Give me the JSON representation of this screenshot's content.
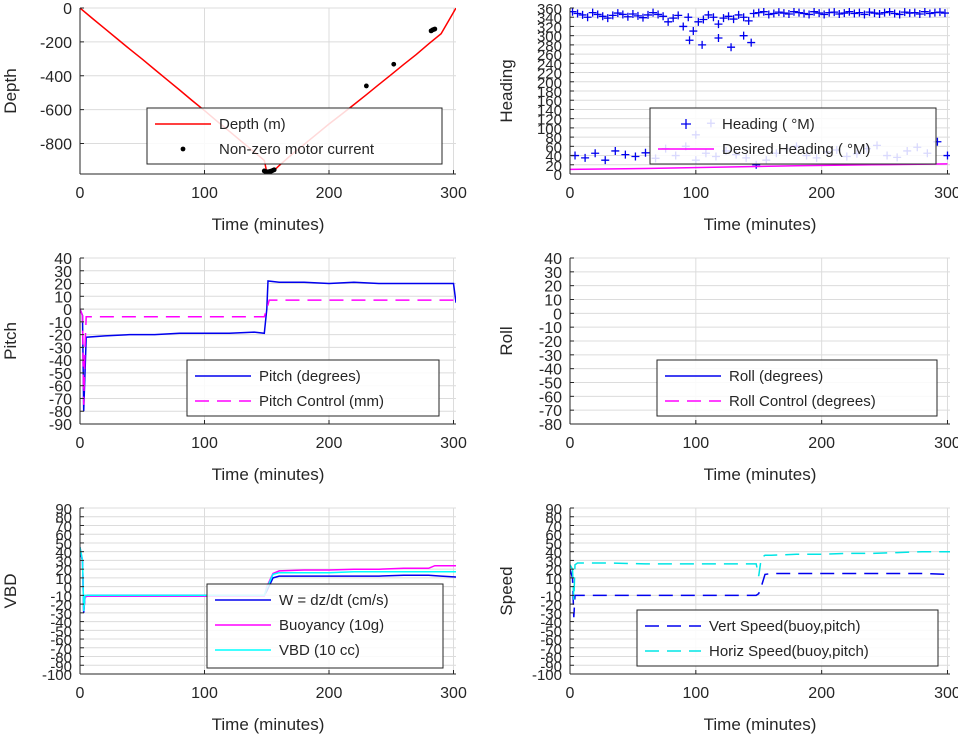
{
  "chart_data": [
    {
      "type": "line",
      "xlabel": "Time (minutes)",
      "ylabel": "Depth",
      "xlim": [
        0,
        302
      ],
      "ylim": [
        -980,
        0
      ],
      "xticks": [
        0,
        100,
        200,
        300
      ],
      "yticks": [
        0,
        -200,
        -400,
        -600,
        -800
      ],
      "grid": true,
      "legend": "lower-center",
      "series": [
        {
          "name": "Depth (m)",
          "style": "line",
          "color": "#ff0000",
          "x": [
            0,
            10,
            20,
            30,
            40,
            50,
            60,
            70,
            80,
            90,
            100,
            110,
            120,
            130,
            140,
            148,
            150,
            155,
            160,
            170,
            180,
            190,
            200,
            210,
            220,
            230,
            240,
            250,
            260,
            270,
            280,
            290,
            302
          ],
          "y": [
            0,
            -62,
            -122,
            -183,
            -243,
            -302,
            -363,
            -424,
            -484,
            -546,
            -606,
            -668,
            -728,
            -790,
            -850,
            -900,
            -970,
            -965,
            -930,
            -865,
            -805,
            -745,
            -685,
            -628,
            -570,
            -512,
            -452,
            -393,
            -333,
            -275,
            -212,
            -152,
            0
          ]
        },
        {
          "name": "Non-zero motor current",
          "style": "dots",
          "color": "#000000",
          "x": [
            148,
            149,
            150,
            151,
            152,
            153,
            154,
            155,
            156,
            230,
            252,
            282,
            283,
            284,
            285
          ],
          "y": [
            -962,
            -965,
            -968,
            -967,
            -966,
            -964,
            -962,
            -958,
            -955,
            -460,
            -332,
            -135,
            -130,
            -127,
            -124
          ]
        }
      ]
    },
    {
      "type": "scatter",
      "xlabel": "Time (minutes)",
      "ylabel": "Heading",
      "xlim": [
        0,
        302
      ],
      "ylim": [
        0,
        360
      ],
      "xticks": [
        0,
        100,
        200,
        300
      ],
      "yticks": [
        0,
        20,
        40,
        60,
        80,
        100,
        120,
        140,
        160,
        180,
        200,
        220,
        240,
        260,
        280,
        300,
        320,
        340,
        360
      ],
      "grid": true,
      "legend": "center-right",
      "series": [
        {
          "name": "Heading ( °M)",
          "style": "plus",
          "color": "#0000ee",
          "x": [
            2,
            6,
            10,
            14,
            18,
            22,
            26,
            30,
            34,
            38,
            42,
            46,
            50,
            54,
            58,
            62,
            66,
            70,
            74,
            78,
            82,
            86,
            90,
            94,
            98,
            102,
            106,
            110,
            114,
            118,
            122,
            126,
            130,
            134,
            138,
            142,
            146,
            150,
            154,
            158,
            162,
            166,
            170,
            174,
            178,
            182,
            186,
            190,
            194,
            198,
            202,
            206,
            210,
            214,
            218,
            222,
            226,
            230,
            234,
            238,
            242,
            246,
            250,
            254,
            258,
            262,
            266,
            270,
            274,
            278,
            282,
            286,
            290,
            294,
            298,
            4,
            12,
            20,
            28,
            36,
            44,
            52,
            60,
            68,
            76,
            84,
            92,
            100,
            108,
            116,
            124,
            132,
            140,
            148,
            156,
            164,
            172,
            180,
            188,
            196,
            204,
            212,
            220,
            228,
            236,
            244,
            252,
            260,
            268,
            276,
            284,
            292,
            300,
            95,
            105,
            118,
            128,
            138,
            144,
            100,
            112
          ],
          "y": [
            352,
            348,
            345,
            340,
            350,
            346,
            342,
            338,
            344,
            349,
            346,
            341,
            347,
            343,
            339,
            345,
            350,
            346,
            342,
            330,
            338,
            344,
            320,
            340,
            310,
            330,
            335,
            345,
            340,
            325,
            338,
            342,
            336,
            345,
            340,
            332,
            348,
            350,
            352,
            346,
            348,
            351,
            349,
            347,
            352,
            350,
            348,
            346,
            352,
            349,
            346,
            350,
            351,
            347,
            349,
            352,
            348,
            350,
            346,
            351,
            349,
            347,
            350,
            352,
            348,
            346,
            351,
            349,
            350,
            347,
            352,
            348,
            350,
            351,
            349,
            40,
            35,
            45,
            30,
            50,
            42,
            38,
            46,
            34,
            55,
            40,
            60,
            30,
            45,
            38,
            50,
            42,
            35,
            20,
            30,
            45,
            55,
            60,
            40,
            35,
            48,
            52,
            38,
            44,
            55,
            62,
            40,
            36,
            50,
            58,
            45,
            70,
            40,
            290,
            280,
            295,
            275,
            300,
            285,
            85,
            110
          ]
        },
        {
          "name": "Desired Heading ( °M)",
          "style": "line",
          "color": "#ff00ff",
          "x": [
            0,
            60,
            120,
            180,
            240,
            300
          ],
          "y": [
            10,
            12,
            15,
            18,
            20,
            22
          ]
        }
      ]
    },
    {
      "type": "line",
      "xlabel": "Time (minutes)",
      "ylabel": "Pitch",
      "xlim": [
        0,
        302
      ],
      "ylim": [
        -90,
        40
      ],
      "xticks": [
        0,
        100,
        200,
        300
      ],
      "yticks": [
        -90,
        -80,
        -70,
        -60,
        -50,
        -40,
        -30,
        -20,
        -10,
        0,
        10,
        20,
        30,
        40
      ],
      "grid": true,
      "legend": "lower-right",
      "series": [
        {
          "name": "Pitch (degrees)",
          "style": "line",
          "color": "#0000ee",
          "x": [
            0,
            2,
            3,
            4,
            5,
            20,
            40,
            60,
            80,
            100,
            120,
            140,
            148,
            150,
            151,
            160,
            180,
            200,
            220,
            240,
            260,
            280,
            300,
            302
          ],
          "y": [
            0,
            -5,
            -80,
            -50,
            -22,
            -21,
            -20,
            -20,
            -19,
            -19,
            -19,
            -18,
            -19,
            0,
            22,
            21,
            21,
            20,
            21,
            20,
            20,
            20,
            20,
            5
          ]
        },
        {
          "name": "Pitch Control (mm)",
          "style": "dashed",
          "color": "#ff00ff",
          "x": [
            0,
            2,
            3,
            4,
            5,
            50,
            100,
            148,
            150,
            152,
            200,
            250,
            302
          ],
          "y": [
            0,
            -5,
            -75,
            -30,
            -6,
            -6,
            -6,
            -6,
            0,
            7,
            7,
            7,
            7
          ]
        }
      ]
    },
    {
      "type": "line",
      "xlabel": "Time (minutes)",
      "ylabel": "Roll",
      "xlim": [
        0,
        302
      ],
      "ylim": [
        -80,
        40
      ],
      "xticks": [
        0,
        100,
        200,
        300
      ],
      "yticks": [
        -80,
        -70,
        -60,
        -50,
        -40,
        -30,
        -20,
        -10,
        0,
        10,
        20,
        30,
        40
      ],
      "grid": true,
      "legend": "lower-right",
      "series": [
        {
          "name": "Roll (degrees)",
          "style": "line",
          "color": "#0000ee",
          "x": [],
          "y": []
        },
        {
          "name": "Roll Control (degrees)",
          "style": "dashed",
          "color": "#ff00ff",
          "x": [],
          "y": []
        }
      ]
    },
    {
      "type": "line",
      "xlabel": "Time (minutes)",
      "ylabel": "VBD",
      "xlim": [
        0,
        302
      ],
      "ylim": [
        -100,
        90
      ],
      "xticks": [
        0,
        100,
        200,
        300
      ],
      "yticks": [
        -100,
        -90,
        -80,
        -70,
        -60,
        -50,
        -40,
        -30,
        -20,
        -10,
        0,
        10,
        20,
        30,
        40,
        50,
        60,
        70,
        80,
        90
      ],
      "grid": true,
      "legend": "lower-right",
      "series": [
        {
          "name": "W = dz/dt (cm/s)",
          "style": "line",
          "color": "#0000ee",
          "x": [
            0,
            2,
            3,
            4,
            6,
            30,
            60,
            90,
            120,
            148,
            150,
            155,
            160,
            180,
            200,
            220,
            240,
            260,
            280,
            290,
            302
          ],
          "y": [
            40,
            30,
            -30,
            -12,
            -10,
            -10,
            -10,
            -10,
            -10,
            -10,
            -5,
            10,
            12,
            12,
            12,
            12,
            12,
            13,
            13,
            12,
            11
          ]
        },
        {
          "name": "Buoyancy (10g)",
          "style": "line",
          "color": "#ff00ff",
          "x": [
            0,
            2,
            3,
            4,
            6,
            30,
            60,
            90,
            120,
            148,
            150,
            155,
            160,
            180,
            200,
            220,
            240,
            260,
            280,
            285,
            302
          ],
          "y": [
            45,
            30,
            -28,
            -12,
            -11,
            -11,
            -11,
            -11,
            -11,
            -11,
            0,
            15,
            18,
            19,
            19,
            20,
            20,
            21,
            21,
            24,
            24
          ]
        },
        {
          "name": "VBD (10 cc)",
          "style": "line",
          "color": "#00ffff",
          "x": [
            0,
            2,
            3,
            4,
            6,
            30,
            60,
            90,
            120,
            148,
            150,
            155,
            160,
            180,
            200,
            220,
            240,
            260,
            280,
            302
          ],
          "y": [
            45,
            30,
            -28,
            -10,
            -10,
            -10,
            -10,
            -10,
            -10,
            -10,
            -2,
            14,
            16,
            16,
            16,
            17,
            17,
            17,
            17,
            17
          ]
        }
      ]
    },
    {
      "type": "line",
      "xlabel": "Time (minutes)",
      "ylabel": "Speed",
      "xlim": [
        0,
        302
      ],
      "ylim": [
        -100,
        90
      ],
      "xticks": [
        0,
        100,
        200,
        300
      ],
      "yticks": [
        -100,
        -90,
        -80,
        -70,
        -60,
        -50,
        -40,
        -30,
        -20,
        -10,
        0,
        10,
        20,
        30,
        40,
        50,
        60,
        70,
        80,
        90
      ],
      "grid": true,
      "legend": "lower-right",
      "series": [
        {
          "name": "Vert Speed(buoy,pitch)",
          "style": "dashed",
          "color": "#0000ee",
          "x": [
            0,
            2,
            3,
            4,
            6,
            30,
            60,
            90,
            120,
            148,
            150,
            152,
            155,
            160,
            180,
            200,
            220,
            240,
            260,
            280,
            302
          ],
          "y": [
            20,
            10,
            -35,
            -10,
            -10,
            -10,
            -10,
            -10,
            -10,
            -10,
            -8,
            0,
            14,
            15,
            15,
            15,
            15,
            15,
            15,
            15,
            14
          ]
        },
        {
          "name": "Horiz Speed(buoy,pitch)",
          "style": "dashed",
          "color": "#00e5e5",
          "x": [
            0,
            2,
            3,
            4,
            6,
            30,
            60,
            90,
            120,
            148,
            150,
            152,
            155,
            160,
            180,
            200,
            220,
            240,
            260,
            280,
            302
          ],
          "y": [
            25,
            20,
            -15,
            25,
            27,
            27,
            26,
            26,
            26,
            26,
            12,
            33,
            36,
            36,
            37,
            37,
            38,
            38,
            39,
            40,
            40
          ]
        }
      ]
    }
  ]
}
